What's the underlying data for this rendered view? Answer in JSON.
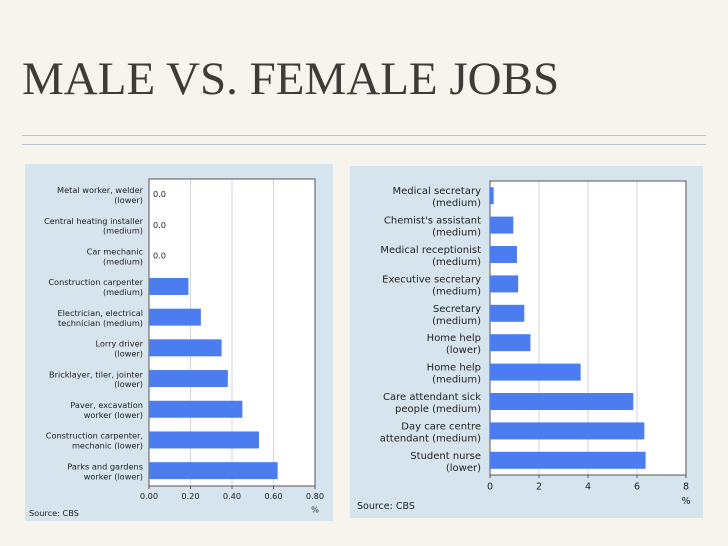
{
  "slide": {
    "title": "MALE VS. FEMALE JOBS"
  },
  "chart_data": [
    {
      "type": "bar",
      "orientation": "horizontal",
      "categories": [
        [
          "Metal worker, welder",
          "(lower)"
        ],
        [
          "Central heating installer",
          "(medium)"
        ],
        [
          "Car mechanic",
          "(medium)"
        ],
        [
          "Construction carpenter",
          "(medium)"
        ],
        [
          "Electrician, electrical",
          "technician (medium)"
        ],
        [
          "Lorry driver",
          "(lower)"
        ],
        [
          "Bricklayer, tiler, jointer",
          "(lower)"
        ],
        [
          "Paver, excavation",
          "worker (lower)"
        ],
        [
          "Construction carpenter,",
          "mechanic (lower)"
        ],
        [
          "Parks and gardens",
          "worker (lower)"
        ]
      ],
      "values": [
        0.0,
        0.0,
        0.0,
        0.19,
        0.25,
        0.35,
        0.38,
        0.45,
        0.53,
        0.62
      ],
      "value_labels": [
        "0.0",
        "0.0",
        "0.0",
        "",
        "",
        "",
        "",
        "",
        "",
        ""
      ],
      "xticks": [
        "0.00",
        "0.20",
        "0.40",
        "0.60",
        "0.80"
      ],
      "xlim": [
        0,
        0.8
      ],
      "unit": "%",
      "source": "Source: CBS",
      "bar_color": "#4b7df0",
      "grid": true
    },
    {
      "type": "bar",
      "orientation": "horizontal",
      "categories": [
        [
          "Medical secretary",
          "(medium)"
        ],
        [
          "Chemist's assistant",
          "(medium)"
        ],
        [
          "Medical receptionist",
          "(medium)"
        ],
        [
          "Executive secretary",
          "(medium)"
        ],
        [
          "Secretary",
          "(medium)"
        ],
        [
          "Home help",
          "(lower)"
        ],
        [
          "Home help",
          "(medium)"
        ],
        [
          "Care attendant sick",
          "people (medium)"
        ],
        [
          "Day care centre",
          "attendant (medium)"
        ],
        [
          "Student nurse",
          "(lower)"
        ]
      ],
      "values": [
        0.15,
        0.95,
        1.1,
        1.15,
        1.4,
        1.65,
        3.7,
        5.85,
        6.3,
        6.35
      ],
      "xticks": [
        "0",
        "2",
        "4",
        "6",
        "8"
      ],
      "xlim": [
        0,
        8
      ],
      "unit": "%",
      "source": "Source: CBS",
      "bar_color": "#4b7df0",
      "grid": true
    }
  ]
}
